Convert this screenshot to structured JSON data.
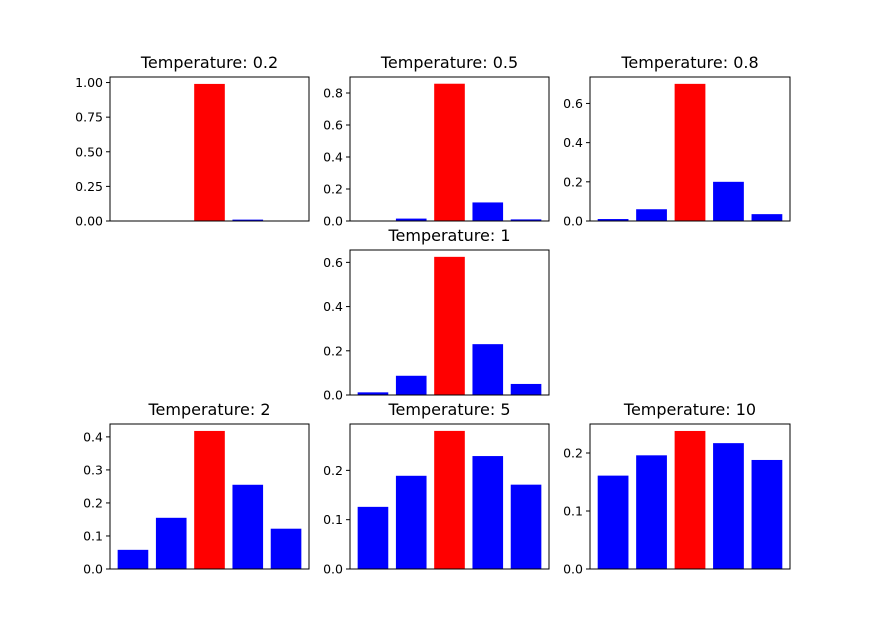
{
  "colors": {
    "highlight": "#ff0000",
    "normal": "#0000ff"
  },
  "chart_data": [
    {
      "type": "bar",
      "title": "Temperature: 0.2",
      "values": [
        0.0,
        0.0,
        0.99,
        0.01,
        0.0
      ],
      "highlight_index": 2,
      "ylim": [
        0,
        1.04
      ],
      "yticks": [
        "0.00",
        "0.25",
        "0.50",
        "0.75",
        "1.00"
      ],
      "ytick_values": [
        0,
        0.25,
        0.5,
        0.75,
        1.0
      ]
    },
    {
      "type": "bar",
      "title": "Temperature: 0.5",
      "values": [
        0.0,
        0.015,
        0.858,
        0.116,
        0.01
      ],
      "highlight_index": 2,
      "ylim": [
        0,
        0.9
      ],
      "yticks": [
        "0.0",
        "0.2",
        "0.4",
        "0.6",
        "0.8"
      ],
      "ytick_values": [
        0,
        0.2,
        0.4,
        0.6,
        0.8
      ]
    },
    {
      "type": "bar",
      "title": "Temperature: 0.8",
      "values": [
        0.01,
        0.06,
        0.7,
        0.2,
        0.035
      ],
      "highlight_index": 2,
      "ylim": [
        0,
        0.735
      ],
      "yticks": [
        "0.0",
        "0.2",
        "0.4",
        "0.6"
      ],
      "ytick_values": [
        0,
        0.2,
        0.4,
        0.6
      ]
    },
    {
      "type": "bar",
      "title": "Temperature: 1",
      "values": [
        0.012,
        0.087,
        0.625,
        0.23,
        0.05
      ],
      "highlight_index": 2,
      "ylim": [
        0,
        0.656
      ],
      "yticks": [
        "0.0",
        "0.2",
        "0.4",
        "0.6"
      ],
      "ytick_values": [
        0,
        0.2,
        0.4,
        0.6
      ]
    },
    {
      "type": "bar",
      "title": "Temperature: 2",
      "values": [
        0.058,
        0.155,
        0.418,
        0.255,
        0.122
      ],
      "highlight_index": 2,
      "ylim": [
        0,
        0.439
      ],
      "yticks": [
        "0.0",
        "0.1",
        "0.2",
        "0.3",
        "0.4"
      ],
      "ytick_values": [
        0,
        0.1,
        0.2,
        0.3,
        0.4
      ]
    },
    {
      "type": "bar",
      "title": "Temperature: 5",
      "values": [
        0.126,
        0.189,
        0.28,
        0.229,
        0.171
      ],
      "highlight_index": 2,
      "ylim": [
        0,
        0.294
      ],
      "yticks": [
        "0.0",
        "0.1",
        "0.2"
      ],
      "ytick_values": [
        0,
        0.1,
        0.2
      ]
    },
    {
      "type": "bar",
      "title": "Temperature: 10",
      "values": [
        0.161,
        0.196,
        0.238,
        0.217,
        0.188
      ],
      "highlight_index": 2,
      "ylim": [
        0,
        0.25
      ],
      "yticks": [
        "0.0",
        "0.1",
        "0.2"
      ],
      "ytick_values": [
        0,
        0.1,
        0.2
      ]
    }
  ]
}
